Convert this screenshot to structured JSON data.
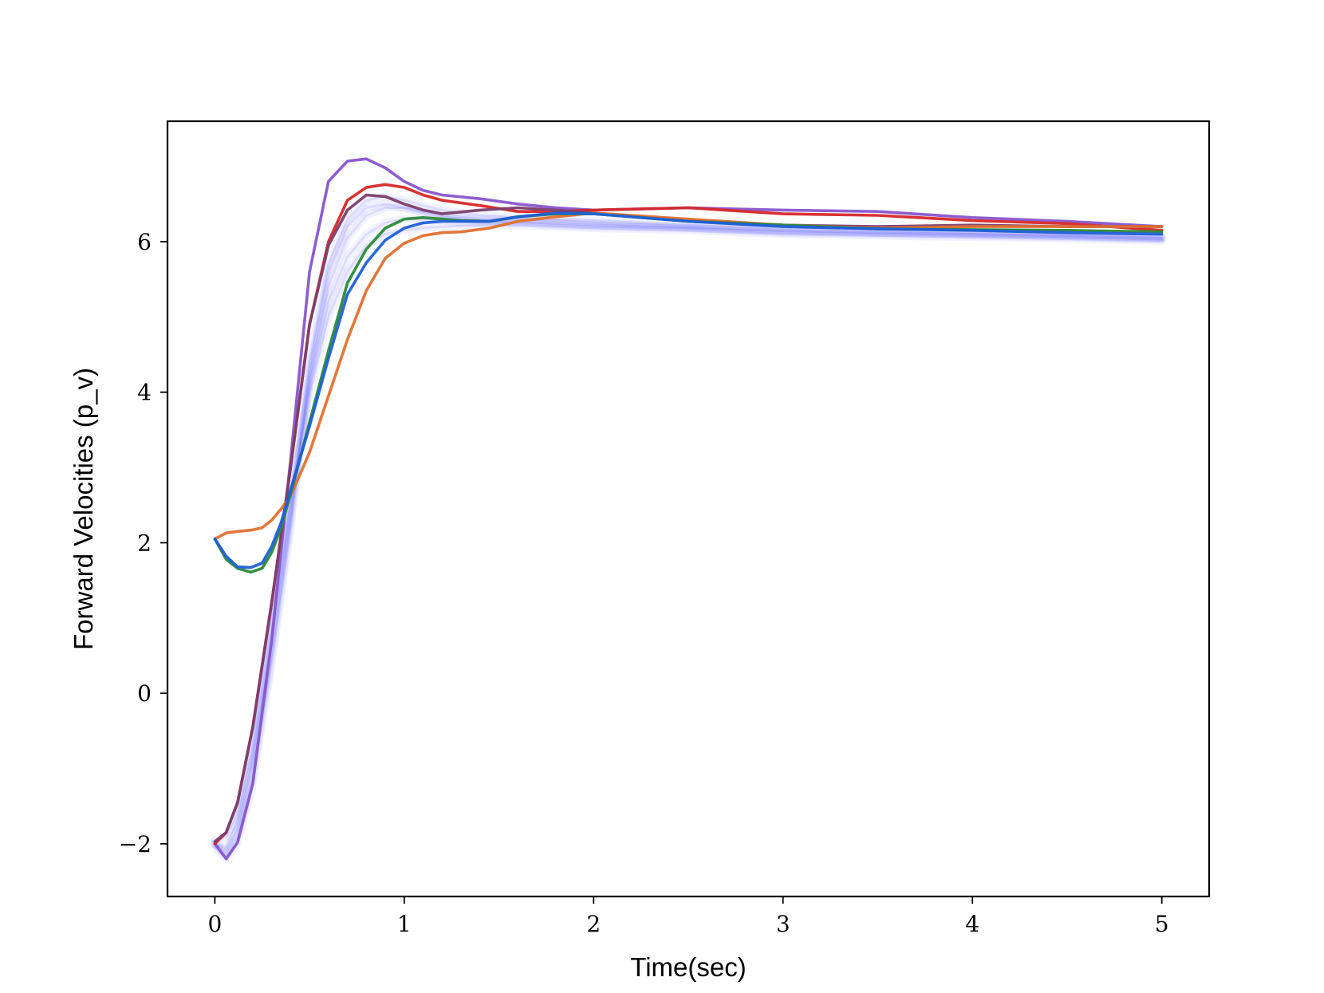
{
  "chart_data": {
    "type": "line",
    "title": "",
    "xlabel": "Time(sec)",
    "ylabel": "Forward Velocities (p_v)",
    "xlim": [
      -0.25,
      5.25
    ],
    "ylim": [
      -2.7,
      7.6
    ],
    "xticks": [
      {
        "value": 0,
        "label": "0"
      },
      {
        "value": 1,
        "label": "1"
      },
      {
        "value": 2,
        "label": "2"
      },
      {
        "value": 3,
        "label": "3"
      },
      {
        "value": 4,
        "label": "4"
      },
      {
        "value": 5,
        "label": "5"
      }
    ],
    "yticks": [
      {
        "value": -2,
        "label": "−2"
      },
      {
        "value": 0,
        "label": "0"
      },
      {
        "value": 2,
        "label": "2"
      },
      {
        "value": 4,
        "label": "4"
      },
      {
        "value": 6,
        "label": "6"
      }
    ],
    "grid": false,
    "legend": "none",
    "background_bundle": {
      "color": "#4444ff",
      "curves": [
        {
          "x": [
            0,
            0.06,
            0.12,
            0.2,
            0.3,
            0.4,
            0.5,
            0.6,
            0.7,
            0.8,
            0.9,
            1.0,
            1.1,
            1.2,
            1.4,
            1.6,
            1.8,
            2.0,
            2.5,
            3.0,
            3.5,
            4.0,
            4.5,
            5.0
          ],
          "y": [
            -2.0,
            -2.15,
            -1.9,
            -1.1,
            0.5,
            2.3,
            4.2,
            5.4,
            6.05,
            6.35,
            6.45,
            6.45,
            6.4,
            6.35,
            6.3,
            6.3,
            6.28,
            6.25,
            6.2,
            6.15,
            6.12,
            6.1,
            6.08,
            6.05
          ]
        },
        {
          "x": [
            0,
            0.06,
            0.12,
            0.2,
            0.3,
            0.4,
            0.5,
            0.6,
            0.7,
            0.8,
            0.9,
            1.0,
            1.1,
            1.2,
            1.4,
            1.6,
            1.8,
            2.0,
            2.5,
            3.0,
            3.5,
            4.0,
            4.5,
            5.0
          ],
          "y": [
            -2.0,
            -2.05,
            -1.7,
            -0.8,
            0.8,
            2.5,
            4.1,
            5.2,
            5.8,
            6.1,
            6.25,
            6.3,
            6.3,
            6.28,
            6.25,
            6.25,
            6.22,
            6.2,
            6.18,
            6.12,
            6.1,
            6.08,
            6.06,
            6.03
          ]
        },
        {
          "x": [
            0,
            0.06,
            0.12,
            0.2,
            0.3,
            0.4,
            0.5,
            0.6,
            0.7,
            0.8,
            0.9,
            1.0,
            1.1,
            1.2,
            1.4,
            1.6,
            1.8,
            2.0,
            2.5,
            3.0,
            3.5,
            4.0,
            4.5,
            5.0
          ],
          "y": [
            -1.95,
            -1.9,
            -1.6,
            -0.7,
            1.0,
            2.6,
            4.0,
            5.0,
            5.6,
            5.95,
            6.1,
            6.15,
            6.18,
            6.2,
            6.22,
            6.22,
            6.2,
            6.18,
            6.15,
            6.1,
            6.08,
            6.06,
            6.04,
            6.01
          ]
        },
        {
          "x": [
            0,
            0.06,
            0.12,
            0.2,
            0.3,
            0.4,
            0.5,
            0.6,
            0.7,
            0.8,
            0.9,
            1.0,
            1.1,
            1.2,
            1.4,
            1.6,
            1.8,
            2.0,
            2.5,
            3.0,
            3.5,
            4.0,
            4.5,
            5.0
          ],
          "y": [
            -2.0,
            -2.1,
            -1.8,
            -0.9,
            0.7,
            2.4,
            4.4,
            5.7,
            6.3,
            6.55,
            6.6,
            6.55,
            6.48,
            6.42,
            6.35,
            6.32,
            6.3,
            6.28,
            6.22,
            6.18,
            6.15,
            6.12,
            6.1,
            6.07
          ]
        },
        {
          "x": [
            0,
            0.06,
            0.12,
            0.2,
            0.3,
            0.4,
            0.5,
            0.6,
            0.7,
            0.8,
            0.9,
            1.0,
            1.1,
            1.2,
            1.4,
            1.6,
            1.8,
            2.0,
            2.5,
            3.0,
            3.5,
            4.0,
            4.5,
            5.0
          ],
          "y": [
            -2.05,
            -2.2,
            -2.0,
            -1.2,
            0.4,
            2.2,
            4.3,
            5.6,
            6.2,
            6.45,
            6.5,
            6.45,
            6.38,
            6.33,
            6.28,
            6.26,
            6.24,
            6.22,
            6.18,
            6.14,
            6.12,
            6.1,
            6.07,
            6.04
          ]
        }
      ]
    },
    "series": [
      {
        "color": "#8855cc",
        "x": [
          0,
          0.06,
          0.12,
          0.2,
          0.3,
          0.4,
          0.5,
          0.6,
          0.7,
          0.8,
          0.9,
          1.0,
          1.1,
          1.2,
          1.4,
          1.6,
          1.8,
          2.0,
          2.5,
          3.0,
          3.5,
          4.0,
          4.5,
          5.0
        ],
        "y": [
          -2.0,
          -2.2,
          -1.98,
          -1.2,
          0.7,
          3.1,
          5.6,
          6.8,
          7.07,
          7.1,
          6.98,
          6.8,
          6.68,
          6.62,
          6.57,
          6.5,
          6.45,
          6.42,
          6.45,
          6.42,
          6.4,
          6.32,
          6.27,
          6.2
        ]
      },
      {
        "color": "#d62728",
        "x": [
          0,
          0.06,
          0.12,
          0.2,
          0.3,
          0.4,
          0.5,
          0.6,
          0.7,
          0.8,
          0.9,
          1.0,
          1.1,
          1.2,
          1.4,
          1.6,
          1.8,
          2.0,
          2.5,
          3.0,
          3.5,
          4.0,
          4.5,
          5.0
        ],
        "y": [
          -2.0,
          -1.85,
          -1.45,
          -0.45,
          1.2,
          3.0,
          4.9,
          6.0,
          6.55,
          6.72,
          6.76,
          6.72,
          6.62,
          6.55,
          6.48,
          6.4,
          6.4,
          6.42,
          6.45,
          6.37,
          6.35,
          6.28,
          6.24,
          6.15
        ]
      },
      {
        "color": "#7b3f6e",
        "x": [
          0,
          0.06,
          0.12,
          0.2,
          0.3,
          0.4,
          0.5,
          0.6,
          0.7,
          0.8,
          0.9,
          1.0,
          1.1,
          1.2,
          1.4,
          1.6,
          1.8,
          2.0,
          2.5,
          3.0,
          3.5,
          4.0,
          4.5,
          5.0
        ],
        "y": [
          -1.97,
          -1.85,
          -1.45,
          -0.45,
          1.2,
          3.0,
          4.9,
          5.95,
          6.42,
          6.62,
          6.6,
          6.5,
          6.42,
          6.37,
          6.42,
          6.45,
          6.42,
          6.38,
          6.28,
          6.22,
          6.2,
          6.22,
          6.2,
          6.2
        ]
      },
      {
        "color": "#e07030",
        "x": [
          0,
          0.06,
          0.12,
          0.2,
          0.25,
          0.3,
          0.35,
          0.4,
          0.5,
          0.6,
          0.7,
          0.8,
          0.9,
          1.0,
          1.1,
          1.2,
          1.3,
          1.45,
          1.6,
          1.8,
          2.0,
          2.5,
          3.0,
          3.5,
          4.0,
          4.5,
          5.0
        ],
        "y": [
          2.05,
          2.13,
          2.15,
          2.17,
          2.2,
          2.3,
          2.45,
          2.62,
          3.2,
          3.95,
          4.7,
          5.35,
          5.78,
          5.98,
          6.08,
          6.12,
          6.13,
          6.18,
          6.27,
          6.33,
          6.38,
          6.3,
          6.22,
          6.18,
          6.2,
          6.2,
          6.2
        ]
      },
      {
        "color": "#2a8a3a",
        "x": [
          0,
          0.06,
          0.12,
          0.19,
          0.25,
          0.3,
          0.35,
          0.4,
          0.5,
          0.6,
          0.7,
          0.8,
          0.9,
          1.0,
          1.1,
          1.2,
          1.3,
          1.45,
          1.6,
          1.8,
          2.0,
          2.5,
          3.0,
          3.5,
          4.0,
          4.5,
          5.0
        ],
        "y": [
          2.05,
          1.78,
          1.66,
          1.61,
          1.66,
          1.87,
          2.2,
          2.65,
          3.6,
          4.55,
          5.45,
          5.9,
          6.18,
          6.3,
          6.32,
          6.3,
          6.28,
          6.27,
          6.33,
          6.37,
          6.37,
          6.27,
          6.22,
          6.17,
          6.16,
          6.15,
          6.13
        ]
      },
      {
        "color": "#1f5fd8",
        "x": [
          0,
          0.06,
          0.12,
          0.19,
          0.25,
          0.3,
          0.35,
          0.4,
          0.5,
          0.6,
          0.7,
          0.8,
          0.9,
          1.0,
          1.1,
          1.2,
          1.3,
          1.45,
          1.6,
          1.8,
          2.0,
          2.5,
          3.0,
          3.5,
          4.0,
          4.5,
          5.0
        ],
        "y": [
          2.05,
          1.82,
          1.68,
          1.67,
          1.73,
          1.95,
          2.27,
          2.7,
          3.55,
          4.45,
          5.3,
          5.72,
          6.02,
          6.18,
          6.25,
          6.27,
          6.27,
          6.27,
          6.33,
          6.38,
          6.37,
          6.27,
          6.2,
          6.17,
          6.15,
          6.12,
          6.1
        ]
      }
    ]
  }
}
